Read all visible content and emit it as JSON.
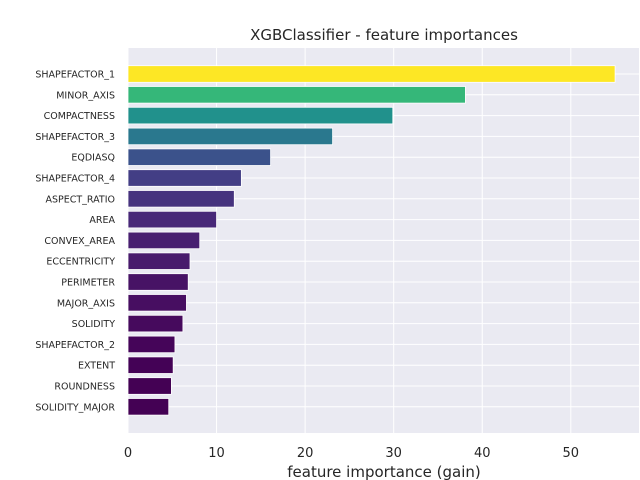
{
  "chart_data": {
    "type": "bar",
    "orientation": "horizontal",
    "title": "XGBClassifier - feature importances",
    "xlabel": "feature importance (gain)",
    "ylabel": "",
    "xlim": [
      0,
      57.7
    ],
    "x_ticks": [
      0,
      10,
      20,
      30,
      40,
      50
    ],
    "grid": true,
    "style": "seaborn-darkgrid",
    "colormap": "viridis",
    "categories": [
      "SHAPEFACTOR_1",
      "MINOR_AXIS",
      "COMPACTNESS",
      "SHAPEFACTOR_3",
      "EQDIASQ",
      "SHAPEFACTOR_4",
      "ASPECT_RATIO",
      "AREA",
      "CONVEX_AREA",
      "ECCENTRICITY",
      "PERIMETER",
      "MAJOR_AXIS",
      "SOLIDITY",
      "SHAPEFACTOR_2",
      "EXTENT",
      "ROUNDNESS",
      "SOLIDITY_MAJOR"
    ],
    "values": [
      55.0,
      38.1,
      29.9,
      23.1,
      16.1,
      12.8,
      12.0,
      10.0,
      8.1,
      7.0,
      6.8,
      6.6,
      6.2,
      5.3,
      5.1,
      4.9,
      4.6
    ],
    "colors": [
      "#fde725",
      "#35b779",
      "#21918c",
      "#2a788e",
      "#3b528b",
      "#433e85",
      "#46337e",
      "#482878",
      "#481f70",
      "#481a6c",
      "#471365",
      "#470e61",
      "#460a5d",
      "#450559",
      "#440256",
      "#440154",
      "#440154"
    ]
  }
}
